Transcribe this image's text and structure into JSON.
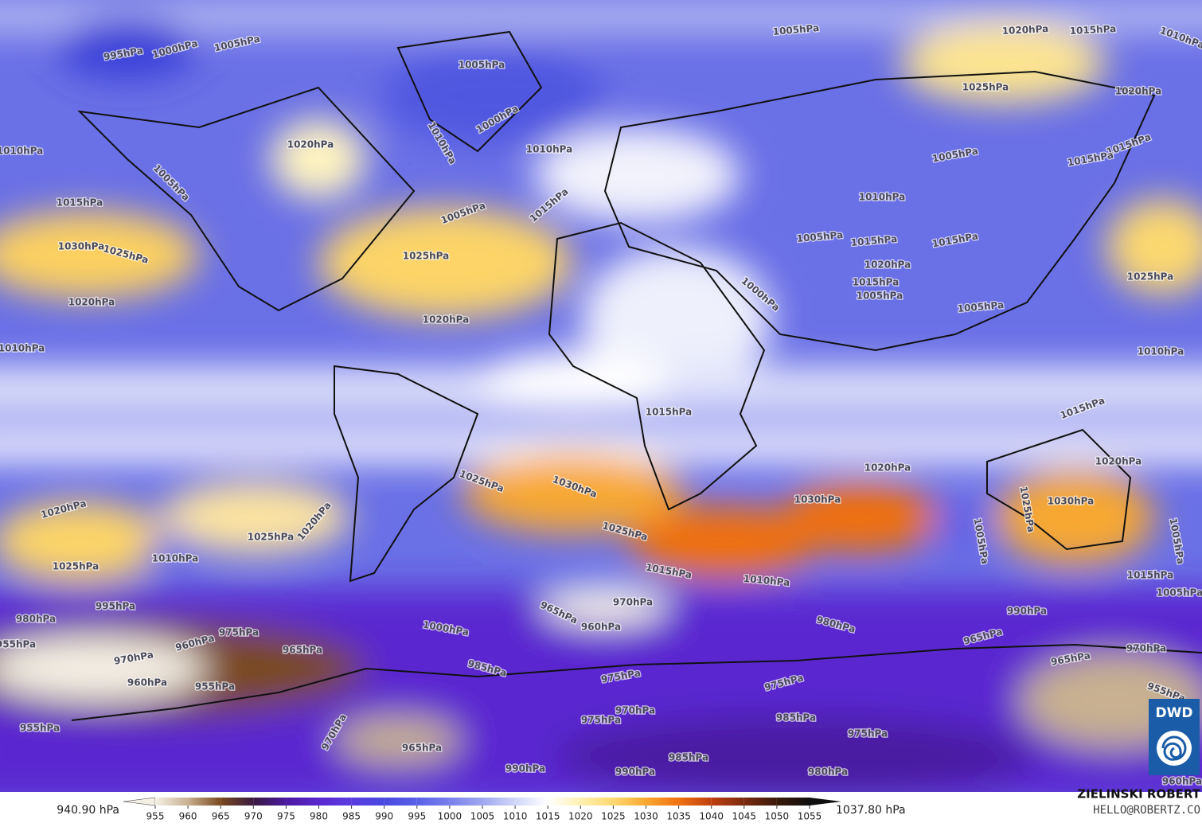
{
  "map": {
    "isobar_labels": [
      "995hPa",
      "1000hPa",
      "1005hPa",
      "1005hPa",
      "1020hPa",
      "1015hPa",
      "1010hPa",
      "1005hPa",
      "1025hPa",
      "1020hPa",
      "1010hPa",
      "1000hPa",
      "1010hPa",
      "1020hPa",
      "1010hPa",
      "1005hPa",
      "1005hPa",
      "1015hPa",
      "1015hPa",
      "1015hPa",
      "1005hPa",
      "1015hPa",
      "1010hPa",
      "1030hPa",
      "1025hPa",
      "1025hPa",
      "1005hPa",
      "1015hPa",
      "1015hPa",
      "1020hPa",
      "1015hPa",
      "1005hPa",
      "1025hPa",
      "1000hPa",
      "1020hPa",
      "1020hPa",
      "1005hPa",
      "1010hPa",
      "1010hPa",
      "1015hPa",
      "1015hPa",
      "1020hPa",
      "1020hPa",
      "1025hPa",
      "1030hPa",
      "1030hPa",
      "1030hPa",
      "1020hPa",
      "1025hPa",
      "1020hPa",
      "1025hPa",
      "1025hPa",
      "1005hPa",
      "1010hPa",
      "1025hPa",
      "1015hPa",
      "1010hPa",
      "1015hPa",
      "1005hPa",
      "1005hPa",
      "970hPa",
      "965hPa",
      "960hPa",
      "995hPa",
      "980hPa",
      "980hPa",
      "990hPa",
      "1000hPa",
      "975hPa",
      "960hPa",
      "955hPa",
      "965hPa",
      "965hPa",
      "970hPa",
      "985hPa",
      "965hPa",
      "970hPa",
      "975hPa",
      "975hPa",
      "960hPa",
      "955hPa",
      "955hPa",
      "970hPa",
      "975hPa",
      "985hPa",
      "975hPa",
      "955hPa",
      "970hPa",
      "965hPa",
      "985hPa",
      "990hPa",
      "990hPa",
      "980hPa",
      "960hPa"
    ],
    "legend": {
      "min_label": "940.90 hPa",
      "max_label": "1037.80 hPa",
      "ticks": [
        955,
        960,
        965,
        970,
        975,
        980,
        985,
        990,
        995,
        1000,
        1005,
        1010,
        1015,
        1020,
        1025,
        1030,
        1035,
        1040,
        1045,
        1050,
        1055
      ],
      "colors": [
        "#f5f0e6",
        "#c8b090",
        "#7a4a20",
        "#3a1a40",
        "#4a1aa0",
        "#5a28d0",
        "#5a3ce0",
        "#4a48e0",
        "#5a60e8",
        "#7a80ec",
        "#a0a8f0",
        "#d0d6f8",
        "#ffffff",
        "#fff0b0",
        "#fcd870",
        "#f8a830",
        "#f07010",
        "#c04010",
        "#7a2a10",
        "#3a1a0a",
        "#101010"
      ]
    }
  },
  "credit": {
    "name": "ZIELINSKI ROBERT",
    "contact": "HELLO@ROBERTZ.CO"
  },
  "logo": "DWD"
}
